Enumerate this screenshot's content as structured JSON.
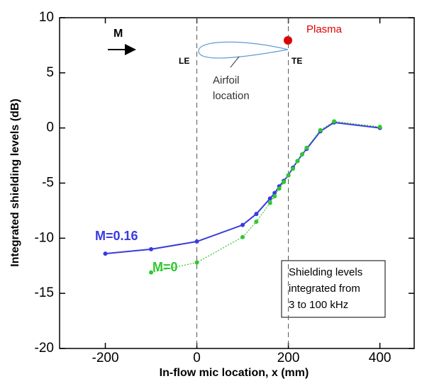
{
  "chart_data": {
    "type": "line",
    "x_label": "In-flow mic location, x (mm)",
    "y_label": "Integrated shielding levels (dB)",
    "xlim": [
      -300,
      475
    ],
    "xticks": [
      -200,
      0,
      200,
      400
    ],
    "ylim": [
      -20,
      10
    ],
    "yticks": [
      -20,
      -15,
      -10,
      -5,
      0,
      5,
      10
    ],
    "series": [
      {
        "name": "M=0.16",
        "color": "#3a3ae0",
        "x": [
          -200,
          -100,
          0,
          100,
          130,
          160,
          170,
          180,
          190,
          200,
          210,
          220,
          230,
          240,
          270,
          300,
          400
        ],
        "values": [
          -11.4,
          -11.0,
          -10.3,
          -8.8,
          -7.8,
          -6.4,
          -5.9,
          -5.3,
          -4.8,
          -4.3,
          -3.6,
          -3.0,
          -2.4,
          -1.9,
          -0.3,
          0.5,
          0.0
        ]
      },
      {
        "name": "M=0",
        "color": "#2ec82e",
        "x": [
          -100,
          0,
          100,
          130,
          160,
          170,
          180,
          190,
          200,
          210,
          220,
          230,
          240,
          270,
          300,
          400
        ],
        "values": [
          -13.1,
          -12.2,
          -9.9,
          -8.5,
          -6.8,
          -6.2,
          -5.5,
          -4.9,
          -4.3,
          -3.7,
          -3.0,
          -2.4,
          -1.8,
          -0.2,
          0.6,
          0.1
        ]
      }
    ],
    "annotations": {
      "flow": "M",
      "leading_edge": "LE",
      "trailing_edge": "TE",
      "airfoil": [
        "Airfoil",
        "location"
      ],
      "plasma": "Plasma",
      "note": [
        "Shielding levels",
        "integrated from",
        "3 to 100 kHz"
      ]
    }
  }
}
